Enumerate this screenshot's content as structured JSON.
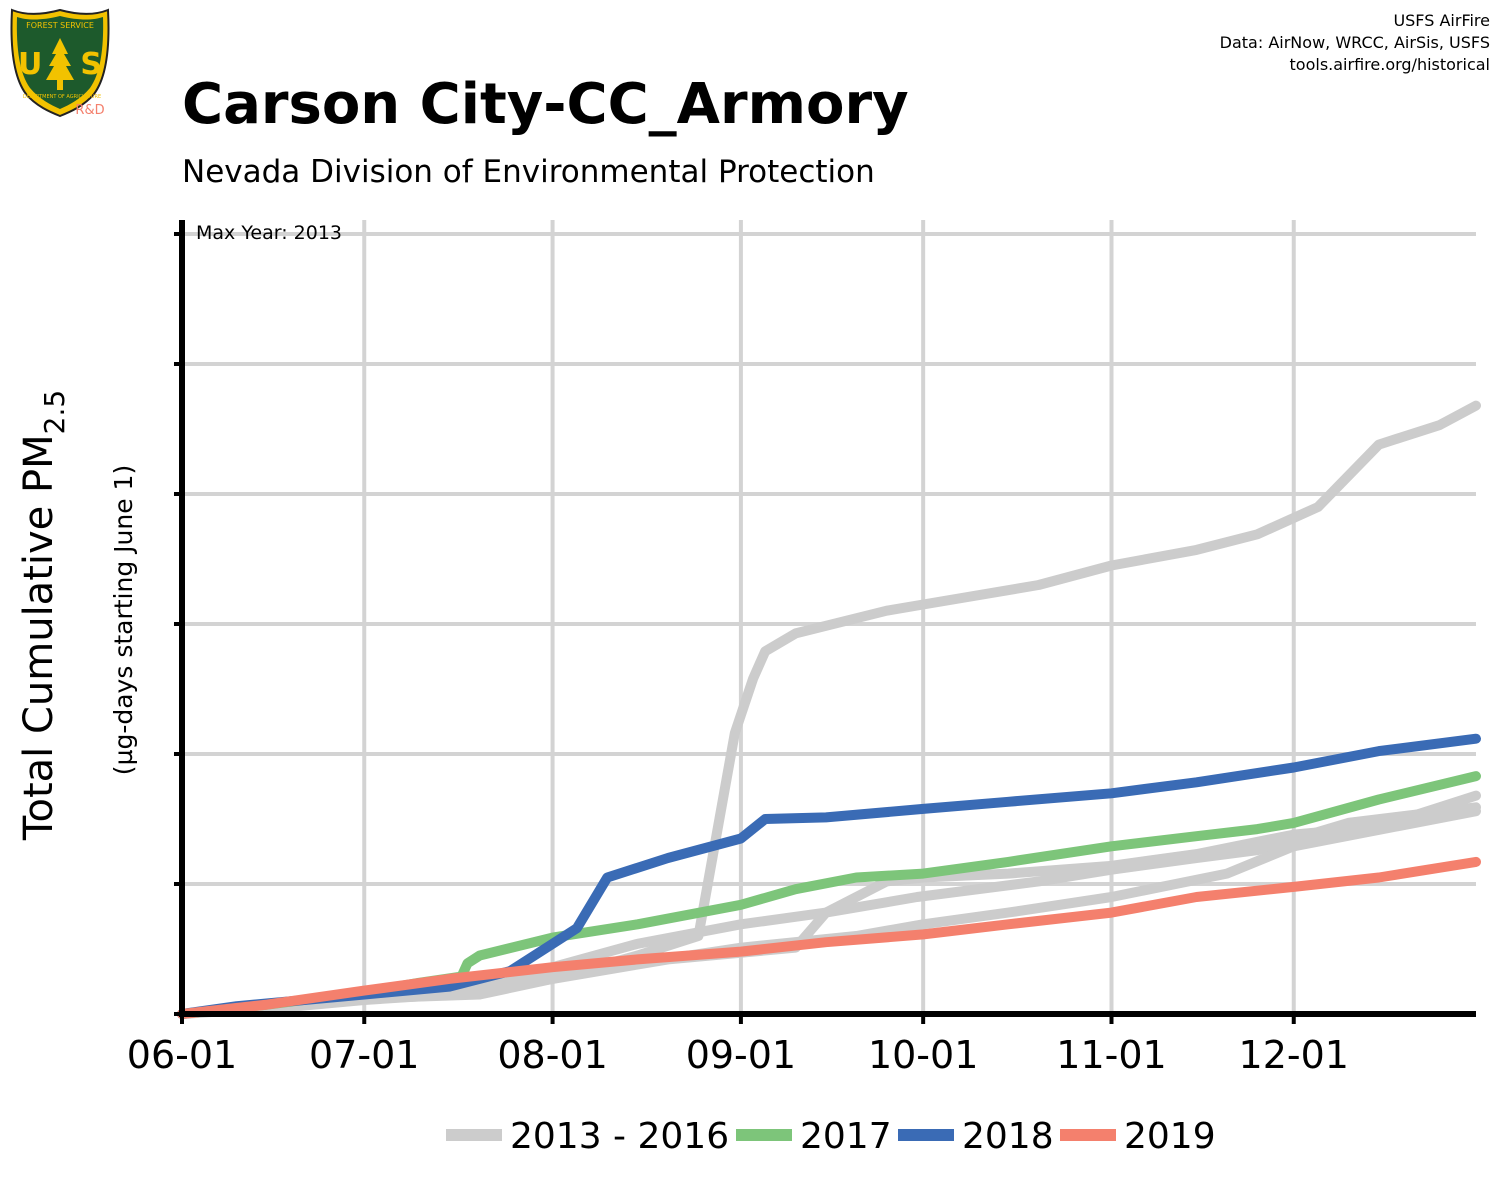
{
  "header": {
    "title": "Carson City-CC_Armory",
    "subtitle": "Nevada Division of Environmental Protection",
    "logo_text_top": "FOREST SERVICE",
    "logo_text_letters": "U S",
    "logo_text_bottom": "DEPARTMENT OF AGRICULTURE",
    "logo_badge": "R&D"
  },
  "credits": {
    "line1": "USFS AirFire",
    "line2": "Data: AirNow, WRCC, AirSis, USFS",
    "line3": "tools.airfire.org/historical"
  },
  "chart_data": {
    "type": "line",
    "title": "Carson City-CC_Armory",
    "subtitle": "Nevada Division of Environmental Protection",
    "ylabel_main": "Total Cumulative PM",
    "ylabel_sub": "2.5",
    "ylabel_note": "(µg-days starting June 1)",
    "annotation": "Max Year: 2013",
    "x_unit": "date (MM-DD, season starting June 1)",
    "x_range": [
      "06-01",
      "12-31"
    ],
    "x_ticks": [
      "06-01",
      "07-01",
      "08-01",
      "09-01",
      "10-01",
      "11-01",
      "12-01"
    ],
    "y_range_fraction": [
      0,
      1
    ],
    "y_tick_labels_shown": false,
    "y_tick_count": 6,
    "grid": true,
    "legend_position": "bottom",
    "note": "y values are fractions of the axis maximum; no y tick labels printed",
    "series": [
      {
        "name": "2013 - 2016",
        "color": "#cccccc",
        "group": "2013 - 2016",
        "points": [
          [
            "06-01",
            0.0
          ],
          [
            "06-20",
            0.01
          ],
          [
            "07-01",
            0.018
          ],
          [
            "07-15",
            0.025
          ],
          [
            "08-01",
            0.045
          ],
          [
            "08-15",
            0.075
          ],
          [
            "08-25",
            0.1
          ],
          [
            "08-28",
            0.23
          ],
          [
            "08-31",
            0.36
          ],
          [
            "09-03",
            0.43
          ],
          [
            "09-05",
            0.465
          ],
          [
            "09-10",
            0.488
          ],
          [
            "09-25",
            0.517
          ],
          [
            "10-01",
            0.525
          ],
          [
            "10-20",
            0.55
          ],
          [
            "11-01",
            0.575
          ],
          [
            "11-15",
            0.595
          ],
          [
            "11-25",
            0.615
          ],
          [
            "12-05",
            0.65
          ],
          [
            "12-15",
            0.73
          ],
          [
            "12-25",
            0.755
          ],
          [
            "12-31",
            0.78
          ]
        ]
      },
      {
        "name": "2013 - 2016",
        "color": "#cccccc",
        "group": "2013 - 2016",
        "points": [
          [
            "06-01",
            0.0
          ],
          [
            "07-01",
            0.025
          ],
          [
            "07-20",
            0.04
          ],
          [
            "08-01",
            0.06
          ],
          [
            "08-15",
            0.09
          ],
          [
            "09-01",
            0.115
          ],
          [
            "09-15",
            0.13
          ],
          [
            "09-25",
            0.17
          ],
          [
            "10-01",
            0.175
          ],
          [
            "10-15",
            0.18
          ],
          [
            "11-01",
            0.19
          ],
          [
            "11-15",
            0.205
          ],
          [
            "12-01",
            0.23
          ],
          [
            "12-15",
            0.24
          ],
          [
            "12-31",
            0.28
          ]
        ]
      },
      {
        "name": "2013 - 2016",
        "color": "#cccccc",
        "group": "2013 - 2016",
        "points": [
          [
            "06-01",
            0.0
          ],
          [
            "07-01",
            0.02
          ],
          [
            "07-20",
            0.025
          ],
          [
            "08-01",
            0.045
          ],
          [
            "08-20",
            0.07
          ],
          [
            "09-10",
            0.085
          ],
          [
            "09-15",
            0.13
          ],
          [
            "09-30",
            0.15
          ],
          [
            "10-20",
            0.17
          ],
          [
            "11-01",
            0.185
          ],
          [
            "11-15",
            0.2
          ],
          [
            "11-25",
            0.21
          ],
          [
            "12-10",
            0.245
          ],
          [
            "12-31",
            0.265
          ]
        ]
      },
      {
        "name": "2013 - 2016",
        "color": "#cccccc",
        "group": "2013 - 2016",
        "points": [
          [
            "06-01",
            0.0
          ],
          [
            "07-01",
            0.025
          ],
          [
            "08-01",
            0.055
          ],
          [
            "08-15",
            0.065
          ],
          [
            "09-01",
            0.085
          ],
          [
            "09-20",
            0.1
          ],
          [
            "10-01",
            0.115
          ],
          [
            "10-15",
            0.13
          ],
          [
            "11-01",
            0.15
          ],
          [
            "11-20",
            0.18
          ],
          [
            "12-01",
            0.215
          ],
          [
            "12-31",
            0.26
          ]
        ]
      },
      {
        "name": "2017",
        "color": "#7dc57a",
        "group": "2017",
        "points": [
          [
            "06-01",
            0.0
          ],
          [
            "06-15",
            0.012
          ],
          [
            "07-01",
            0.028
          ],
          [
            "07-10",
            0.04
          ],
          [
            "07-17",
            0.048
          ],
          [
            "07-18",
            0.065
          ],
          [
            "07-20",
            0.075
          ],
          [
            "08-01",
            0.098
          ],
          [
            "08-15",
            0.115
          ],
          [
            "09-01",
            0.14
          ],
          [
            "09-10",
            0.16
          ],
          [
            "09-20",
            0.175
          ],
          [
            "10-01",
            0.18
          ],
          [
            "10-15",
            0.195
          ],
          [
            "11-01",
            0.215
          ],
          [
            "11-15",
            0.228
          ],
          [
            "11-25",
            0.237
          ],
          [
            "12-01",
            0.245
          ],
          [
            "12-15",
            0.275
          ],
          [
            "12-31",
            0.305
          ]
        ]
      },
      {
        "name": "2018",
        "color": "#3a6bb5",
        "group": "2018",
        "points": [
          [
            "06-01",
            0.0
          ],
          [
            "06-10",
            0.01
          ],
          [
            "07-01",
            0.025
          ],
          [
            "07-15",
            0.035
          ],
          [
            "07-25",
            0.055
          ],
          [
            "08-01",
            0.09
          ],
          [
            "08-05",
            0.11
          ],
          [
            "08-10",
            0.175
          ],
          [
            "08-20",
            0.2
          ],
          [
            "09-01",
            0.225
          ],
          [
            "09-05",
            0.25
          ],
          [
            "09-15",
            0.252
          ],
          [
            "10-01",
            0.263
          ],
          [
            "10-15",
            0.272
          ],
          [
            "11-01",
            0.283
          ],
          [
            "11-15",
            0.297
          ],
          [
            "12-01",
            0.316
          ],
          [
            "12-15",
            0.337
          ],
          [
            "12-31",
            0.353
          ]
        ]
      },
      {
        "name": "2019",
        "color": "#f4806d",
        "group": "2019",
        "points": [
          [
            "06-01",
            0.0
          ],
          [
            "06-15",
            0.012
          ],
          [
            "07-01",
            0.03
          ],
          [
            "07-15",
            0.045
          ],
          [
            "08-01",
            0.06
          ],
          [
            "08-15",
            0.07
          ],
          [
            "09-01",
            0.08
          ],
          [
            "09-15",
            0.092
          ],
          [
            "10-01",
            0.102
          ],
          [
            "10-15",
            0.115
          ],
          [
            "11-01",
            0.13
          ],
          [
            "11-15",
            0.15
          ],
          [
            "12-01",
            0.163
          ],
          [
            "12-15",
            0.175
          ],
          [
            "12-31",
            0.195
          ]
        ]
      }
    ],
    "legend": [
      {
        "label": "2013 - 2016",
        "color": "#cccccc"
      },
      {
        "label": "2017",
        "color": "#7dc57a"
      },
      {
        "label": "2018",
        "color": "#3a6bb5"
      },
      {
        "label": "2019",
        "color": "#f4806d"
      }
    ]
  }
}
